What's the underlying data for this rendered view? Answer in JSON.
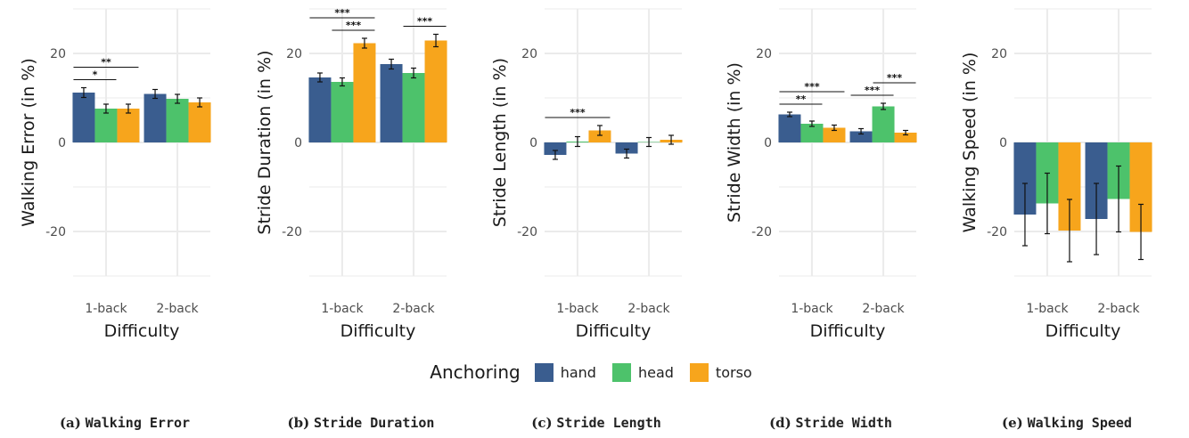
{
  "colors": {
    "hand": "#3a5d8f",
    "head": "#4dc26b",
    "torso": "#f7a51c",
    "grid": "#ebebeb",
    "text": "#222222"
  },
  "legend": {
    "title": "Anchoring",
    "items": [
      "hand",
      "head",
      "torso"
    ]
  },
  "chart_data": [
    {
      "type": "bar",
      "ylabel": "Walking Error (in %)",
      "xlabel": "Difficulty",
      "categories": [
        "1-back",
        "2-back"
      ],
      "ylim": [
        -30,
        30
      ],
      "yticks": [
        -20,
        0,
        20
      ],
      "series": [
        {
          "name": "hand",
          "values": [
            11.2,
            10.9
          ],
          "err": [
            1.1,
            1.0
          ]
        },
        {
          "name": "head",
          "values": [
            7.6,
            9.8
          ],
          "err": [
            1.0,
            1.0
          ]
        },
        {
          "name": "torso",
          "values": [
            7.6,
            9.0
          ],
          "err": [
            1.0,
            1.0
          ]
        }
      ],
      "significance": [
        {
          "cat": 0,
          "from": "hand",
          "to": "head",
          "label": "*"
        },
        {
          "cat": 0,
          "from": "hand",
          "to": "torso",
          "label": "**"
        }
      ],
      "caption": {
        "letter": "(a)",
        "name": "Walking Error"
      }
    },
    {
      "type": "bar",
      "ylabel": "Stride Duration (in %)",
      "xlabel": "Difficulty",
      "categories": [
        "1-back",
        "2-back"
      ],
      "ylim": [
        -30,
        30
      ],
      "yticks": [
        -20,
        0,
        20
      ],
      "series": [
        {
          "name": "hand",
          "values": [
            14.6,
            17.6
          ],
          "err": [
            1.0,
            1.1
          ]
        },
        {
          "name": "head",
          "values": [
            13.6,
            15.6
          ],
          "err": [
            0.9,
            1.1
          ]
        },
        {
          "name": "torso",
          "values": [
            22.3,
            22.9
          ],
          "err": [
            1.1,
            1.4
          ]
        }
      ],
      "significance": [
        {
          "cat": 0,
          "from": "head",
          "to": "torso",
          "label": "***"
        },
        {
          "cat": 0,
          "from": "hand",
          "to": "torso",
          "label": "***"
        },
        {
          "cat": 1,
          "from": "head",
          "to": "torso",
          "label": "***"
        }
      ],
      "caption": {
        "letter": "(b)",
        "name": "Stride Duration"
      }
    },
    {
      "type": "bar",
      "ylabel": "Stride Length (in %)",
      "xlabel": "Difficulty",
      "categories": [
        "1-back",
        "2-back"
      ],
      "ylim": [
        -30,
        30
      ],
      "yticks": [
        -20,
        0,
        20
      ],
      "series": [
        {
          "name": "hand",
          "values": [
            -2.8,
            -2.5
          ],
          "err": [
            1.0,
            1.0
          ]
        },
        {
          "name": "head",
          "values": [
            0.2,
            0.1
          ],
          "err": [
            1.1,
            1.0
          ]
        },
        {
          "name": "torso",
          "values": [
            2.7,
            0.6
          ],
          "err": [
            1.1,
            1.0
          ]
        }
      ],
      "significance": [
        {
          "cat": 0,
          "from": "hand",
          "to": "torso",
          "label": "***"
        }
      ],
      "caption": {
        "letter": "(c)",
        "name": "Stride Length"
      }
    },
    {
      "type": "bar",
      "ylabel": "Stride Width (in %)",
      "xlabel": "Difficulty",
      "categories": [
        "1-back",
        "2-back"
      ],
      "ylim": [
        -30,
        30
      ],
      "yticks": [
        -20,
        0,
        20
      ],
      "series": [
        {
          "name": "hand",
          "values": [
            6.3,
            2.5
          ],
          "err": [
            0.5,
            0.6
          ]
        },
        {
          "name": "head",
          "values": [
            4.2,
            8.1
          ],
          "err": [
            0.6,
            0.7
          ]
        },
        {
          "name": "torso",
          "values": [
            3.3,
            2.2
          ],
          "err": [
            0.6,
            0.5
          ]
        }
      ],
      "significance": [
        {
          "cat": 0,
          "from": "hand",
          "to": "head",
          "label": "**"
        },
        {
          "cat": 0,
          "from": "hand",
          "to": "torso",
          "label": "***"
        },
        {
          "cat": 1,
          "from": "hand",
          "to": "head",
          "label": "***"
        },
        {
          "cat": 1,
          "from": "head",
          "to": "torso",
          "label": "***"
        }
      ],
      "caption": {
        "letter": "(d)",
        "name": "Stride Width"
      }
    },
    {
      "type": "bar",
      "ylabel": "Walking Speed (in %)",
      "xlabel": "Difficulty",
      "categories": [
        "1-back",
        "2-back"
      ],
      "ylim": [
        -30,
        30
      ],
      "yticks": [
        -20,
        0,
        20
      ],
      "series": [
        {
          "name": "hand",
          "values": [
            -16.2,
            -17.2
          ],
          "err": [
            7.0,
            8.0
          ]
        },
        {
          "name": "head",
          "values": [
            -13.7,
            -12.7
          ],
          "err": [
            6.8,
            7.4
          ]
        },
        {
          "name": "torso",
          "values": [
            -19.8,
            -20.1
          ],
          "err": [
            7.0,
            6.2
          ]
        }
      ],
      "significance": [],
      "caption": {
        "letter": "(e)",
        "name": "Walking Speed"
      }
    }
  ]
}
